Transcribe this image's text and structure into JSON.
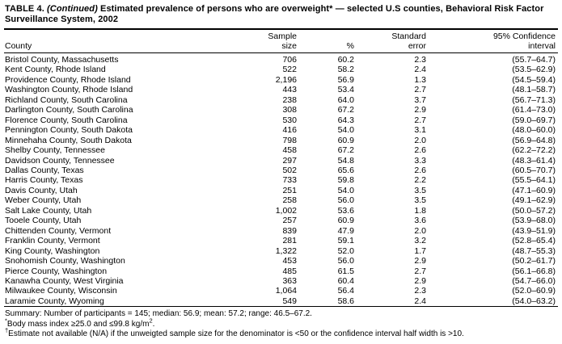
{
  "title": {
    "prefix": "TABLE 4.",
    "continued": "(Continued)",
    "rest": "Estimated prevalence of persons who are overweight* — selected U.S counties, Behavioral Risk Factor Surveillance System, 2002"
  },
  "table": {
    "columns": [
      {
        "label": "County"
      },
      {
        "label": "Sample\nsize"
      },
      {
        "label": "%"
      },
      {
        "label": "Standard\nerror"
      },
      {
        "label": "95% Confidence\ninterval"
      }
    ],
    "rows": [
      {
        "county": "Bristol County, Massachusetts",
        "sample_size": "706",
        "pct": "60.2",
        "se": "2.3",
        "ci": "(55.7–64.7)"
      },
      {
        "county": "Kent County, Rhode Island",
        "sample_size": "522",
        "pct": "58.2",
        "se": "2.4",
        "ci": "(53.5–62.9)"
      },
      {
        "county": "Providence County, Rhode Island",
        "sample_size": "2,196",
        "pct": "56.9",
        "se": "1.3",
        "ci": "(54.5–59.4)"
      },
      {
        "county": "Washington County, Rhode Island",
        "sample_size": "443",
        "pct": "53.4",
        "se": "2.7",
        "ci": "(48.1–58.7)"
      },
      {
        "county": "Richland County, South Carolina",
        "sample_size": "238",
        "pct": "64.0",
        "se": "3.7",
        "ci": "(56.7–71.3)"
      },
      {
        "county": "Darlington County, South Carolina",
        "sample_size": "308",
        "pct": "67.2",
        "se": "2.9",
        "ci": "(61.4–73.0)"
      },
      {
        "county": "Florence County, South Carolina",
        "sample_size": "530",
        "pct": "64.3",
        "se": "2.7",
        "ci": "(59.0–69.7)"
      },
      {
        "county": "Pennington County, South Dakota",
        "sample_size": "416",
        "pct": "54.0",
        "se": "3.1",
        "ci": "(48.0–60.0)"
      },
      {
        "county": "Minnehaha County, South Dakota",
        "sample_size": "798",
        "pct": "60.9",
        "se": "2.0",
        "ci": "(56.9–64.8)"
      },
      {
        "county": "Shelby County, Tennessee",
        "sample_size": "458",
        "pct": "67.2",
        "se": "2.6",
        "ci": "(62.2–72.2)"
      },
      {
        "county": "Davidson County, Tennessee",
        "sample_size": "297",
        "pct": "54.8",
        "se": "3.3",
        "ci": "(48.3–61.4)"
      },
      {
        "county": "Dallas County, Texas",
        "sample_size": "502",
        "pct": "65.6",
        "se": "2.6",
        "ci": "(60.5–70.7)"
      },
      {
        "county": "Harris County, Texas",
        "sample_size": "733",
        "pct": "59.8",
        "se": "2.2",
        "ci": "(55.5–64.1)"
      },
      {
        "county": "Davis County, Utah",
        "sample_size": "251",
        "pct": "54.0",
        "se": "3.5",
        "ci": "(47.1–60.9)"
      },
      {
        "county": "Weber County, Utah",
        "sample_size": "258",
        "pct": "56.0",
        "se": "3.5",
        "ci": "(49.1–62.9)"
      },
      {
        "county": "Salt Lake County, Utah",
        "sample_size": "1,002",
        "pct": "53.6",
        "se": "1.8",
        "ci": "(50.0–57.2)"
      },
      {
        "county": "Tooele County, Utah",
        "sample_size": "257",
        "pct": "60.9",
        "se": "3.6",
        "ci": "(53.9–68.0)"
      },
      {
        "county": "Chittenden County, Vermont",
        "sample_size": "839",
        "pct": "47.9",
        "se": "2.0",
        "ci": "(43.9–51.9)"
      },
      {
        "county": "Franklin County, Vermont",
        "sample_size": "281",
        "pct": "59.1",
        "se": "3.2",
        "ci": "(52.8–65.4)"
      },
      {
        "county": "King County, Washington",
        "sample_size": "1,322",
        "pct": "52.0",
        "se": "1.7",
        "ci": "(48.7–55.3)"
      },
      {
        "county": "Snohomish County, Washington",
        "sample_size": "453",
        "pct": "56.0",
        "se": "2.9",
        "ci": "(50.2–61.7)"
      },
      {
        "county": "Pierce County, Washington",
        "sample_size": "485",
        "pct": "61.5",
        "se": "2.7",
        "ci": "(56.1–66.8)"
      },
      {
        "county": "Kanawha County, West Virginia",
        "sample_size": "363",
        "pct": "60.4",
        "se": "2.9",
        "ci": "(54.7–66.0)"
      },
      {
        "county": "Milwaukee County, Wisconsin",
        "sample_size": "1,064",
        "pct": "56.4",
        "se": "2.3",
        "ci": "(52.0–60.9)"
      },
      {
        "county": "Laramie County, Wyoming",
        "sample_size": "549",
        "pct": "58.6",
        "se": "2.4",
        "ci": "(54.0–63.2)"
      }
    ]
  },
  "footnotes": {
    "summary": "Summary: Number of participants = 145; median: 56.9; mean: 57.2; range: 46.5–67.2.",
    "bmi": {
      "marker": "*",
      "text": "Body mass index ≥25.0 and ≤99.8 kg/m",
      "sup": "2",
      "suffix": "."
    },
    "na": {
      "marker": "†",
      "text": "Estimate not available (N/A) if the unweigted sample size for the denominator is <50 or the confidence interval half width is >10."
    }
  }
}
